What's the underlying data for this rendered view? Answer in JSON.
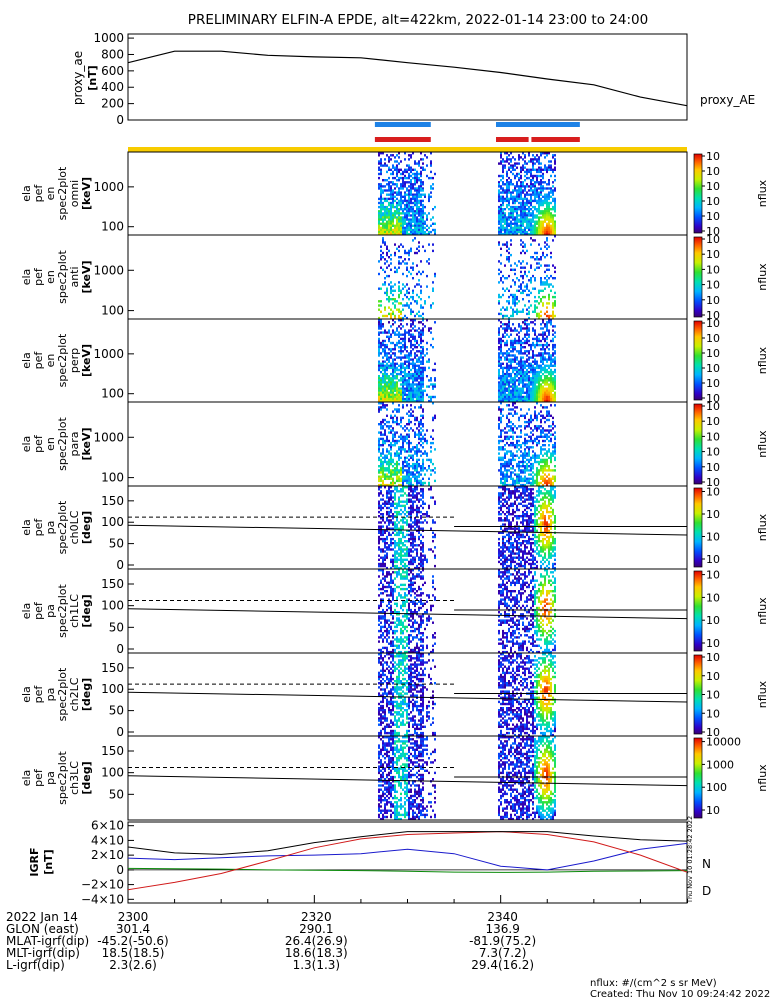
{
  "title": "PRELIMINARY ELFIN-A EPDE, alt=422km, 2022-01-14 23:00 to 24:00",
  "chart_data": [
    {
      "type": "line",
      "ylabel": [
        "proxy_ae",
        "[nT]"
      ],
      "series_label": "proxy_AE",
      "yticks": [
        "0",
        "200",
        "400",
        "600",
        "800",
        "1000"
      ],
      "ylim": [
        0,
        1050
      ],
      "x_minutes": [
        0,
        5,
        10,
        15,
        20,
        25,
        30,
        35,
        40,
        45,
        50,
        55,
        60
      ],
      "values": [
        700,
        840,
        840,
        790,
        770,
        760,
        700,
        645,
        580,
        500,
        430,
        280,
        175
      ],
      "color": "#000000"
    },
    {
      "type": "bar",
      "name": "science zone indicators",
      "blue": [
        [
          26.5,
          32.5
        ],
        [
          39.5,
          48.5
        ]
      ],
      "red": [
        [
          26.5,
          32.5
        ],
        [
          39.5,
          43.0
        ],
        [
          43.3,
          48.5
        ]
      ],
      "yellow": [
        [
          0,
          60
        ]
      ],
      "colors": {
        "blue": "#1e82e6",
        "red": "#d81e1e",
        "yellow": "#f8cc00"
      }
    },
    {
      "type": "heatmap",
      "ylabel": [
        "ela",
        "pef",
        "en",
        "spec2plot",
        "omni",
        "[keV]"
      ],
      "yticks": [
        "100",
        "1000"
      ],
      "cbar_ticks": [
        "10<sup>2</sup>",
        "10<sup>3</sup>",
        "10<sup>4</sup>",
        "10<sup>5</sup>",
        "10<sup>6</sup>",
        "10<sup>7</sup>"
      ],
      "cbar_label": "nflux"
    },
    {
      "type": "heatmap",
      "ylabel": [
        "ela",
        "pef",
        "en",
        "spec2plot",
        "anti",
        "[keV]"
      ],
      "yticks": [
        "100",
        "1000"
      ],
      "cbar_ticks": [
        "10<sup>2</sup>",
        "10<sup>3</sup>",
        "10<sup>4</sup>",
        "10<sup>5</sup>",
        "10<sup>6</sup>",
        "10<sup>7</sup>"
      ],
      "cbar_label": "nflux"
    },
    {
      "type": "heatmap",
      "ylabel": [
        "ela",
        "pef",
        "en",
        "spec2plot",
        "perp",
        "[keV]"
      ],
      "yticks": [
        "100",
        "1000"
      ],
      "cbar_ticks": [
        "10<sup>2</sup>",
        "10<sup>3</sup>",
        "10<sup>4</sup>",
        "10<sup>5</sup>",
        "10<sup>6</sup>",
        "10<sup>7</sup>"
      ],
      "cbar_label": "nflux"
    },
    {
      "type": "heatmap",
      "ylabel": [
        "ela",
        "pef",
        "en",
        "spec2plot",
        "para",
        "[keV]"
      ],
      "yticks": [
        "100",
        "1000"
      ],
      "cbar_ticks": [
        "10<sup>2</sup>",
        "10<sup>3</sup>",
        "10<sup>4</sup>",
        "10<sup>5</sup>",
        "10<sup>6</sup>",
        "10<sup>7</sup>"
      ],
      "cbar_label": "nflux"
    },
    {
      "type": "heatmap",
      "ylabel": [
        "ela",
        "pef",
        "pa",
        "spec2plot",
        "ch0LC",
        "[deg]"
      ],
      "yticks": [
        "0",
        "50",
        "100",
        "150"
      ],
      "cbar_ticks": [
        "10<sup>4</sup>",
        "10<sup>5</sup>",
        "10<sup>6</sup>",
        "10<sup>7</sup>"
      ],
      "cbar_label": "nflux"
    },
    {
      "type": "heatmap",
      "ylabel": [
        "ela",
        "pef",
        "pa",
        "spec2plot",
        "ch1LC",
        "[deg]"
      ],
      "yticks": [
        "0",
        "50",
        "100",
        "150"
      ],
      "cbar_ticks": [
        "10<sup>3</sup>",
        "10<sup>4</sup>",
        "10<sup>5</sup>",
        "10<sup>6</sup>"
      ],
      "cbar_label": "nflux"
    },
    {
      "type": "heatmap",
      "ylabel": [
        "ela",
        "pef",
        "pa",
        "spec2plot",
        "ch2LC",
        "[deg]"
      ],
      "yticks": [
        "0",
        "50",
        "100",
        "150"
      ],
      "cbar_ticks": [
        "10<sup>2</sup>",
        "10<sup>3</sup>",
        "10<sup>4</sup>",
        "10<sup>5</sup>",
        "10<sup>6</sup>"
      ],
      "cbar_label": "nflux"
    },
    {
      "type": "heatmap",
      "ylabel": [
        "ela",
        "pef",
        "pa",
        "spec2plot",
        "ch3LC",
        "[deg]"
      ],
      "yticks": [
        "50",
        "100",
        "150"
      ],
      "cbar_ticks": [
        "10",
        "100",
        "1000",
        "10000"
      ],
      "cbar_label": "nflux"
    },
    {
      "type": "line",
      "ylabel": [
        "IGRF",
        "[nT]"
      ],
      "yticks": [
        "6×10<sup>4</sup>",
        "4×10<sup>4</sup>",
        "2×10<sup>4</sup>",
        "0",
        "−2×10<sup>4</sup>",
        "−4×10<sup>4</sup>"
      ],
      "ylim": [
        -45000,
        65000
      ],
      "x_minutes": [
        0,
        5,
        10,
        15,
        20,
        25,
        30,
        35,
        40,
        45,
        50,
        55,
        60
      ],
      "series": [
        {
          "name": "N",
          "color": "#1a1acc",
          "values": [
            16000,
            14000,
            16500,
            19000,
            20000,
            22000,
            28000,
            22000,
            5000,
            0,
            12000,
            28000,
            36000
          ]
        },
        {
          "name": "E",
          "color": "#0a8a0a",
          "values": [
            2000,
            1500,
            1000,
            0,
            -500,
            -1000,
            -2000,
            -3000,
            -3500,
            -3000,
            -2000,
            -1500,
            -1000
          ]
        },
        {
          "name": "D",
          "color": "#d11a1a",
          "values": [
            -27000,
            -17000,
            -5000,
            12000,
            30000,
            42000,
            48000,
            50000,
            52000,
            48000,
            38000,
            20000,
            -3000
          ]
        },
        {
          "name": "total",
          "color": "#000000",
          "values": [
            31000,
            23000,
            21000,
            26000,
            37000,
            45000,
            52000,
            52000,
            52000,
            52000,
            46000,
            41000,
            39000
          ]
        }
      ],
      "labels": {
        "N": "N",
        "D": "D"
      }
    }
  ],
  "side_stamp": "Thu Nov 10 01:28:42 2022",
  "x_axis": {
    "row_labels": [
      "2022 Jan 14",
      "GLON (east)",
      "MLAT-igrf(dip)",
      "MLT-igrf(dip)",
      "L-igrf(dip)"
    ],
    "columns": [
      {
        "x_minutes": 0,
        "values": [
          "2300",
          "301.4",
          "-45.2(-50.6)",
          "18.5(18.5)",
          "2.3(2.6)"
        ]
      },
      {
        "x_minutes": 20,
        "values": [
          "2320",
          "290.1",
          "26.4(26.9)",
          "18.6(18.3)",
          "1.3(1.3)"
        ]
      },
      {
        "x_minutes": 40,
        "values": [
          "2340",
          "136.9",
          "-81.9(75.2)",
          "7.3(7.2)",
          "29.4(16.2)"
        ]
      }
    ]
  },
  "footer": {
    "units": "nflux: #/(cm^2 s sr MeV)",
    "created": "Created: Thu Nov 10 09:24:42 2022"
  }
}
